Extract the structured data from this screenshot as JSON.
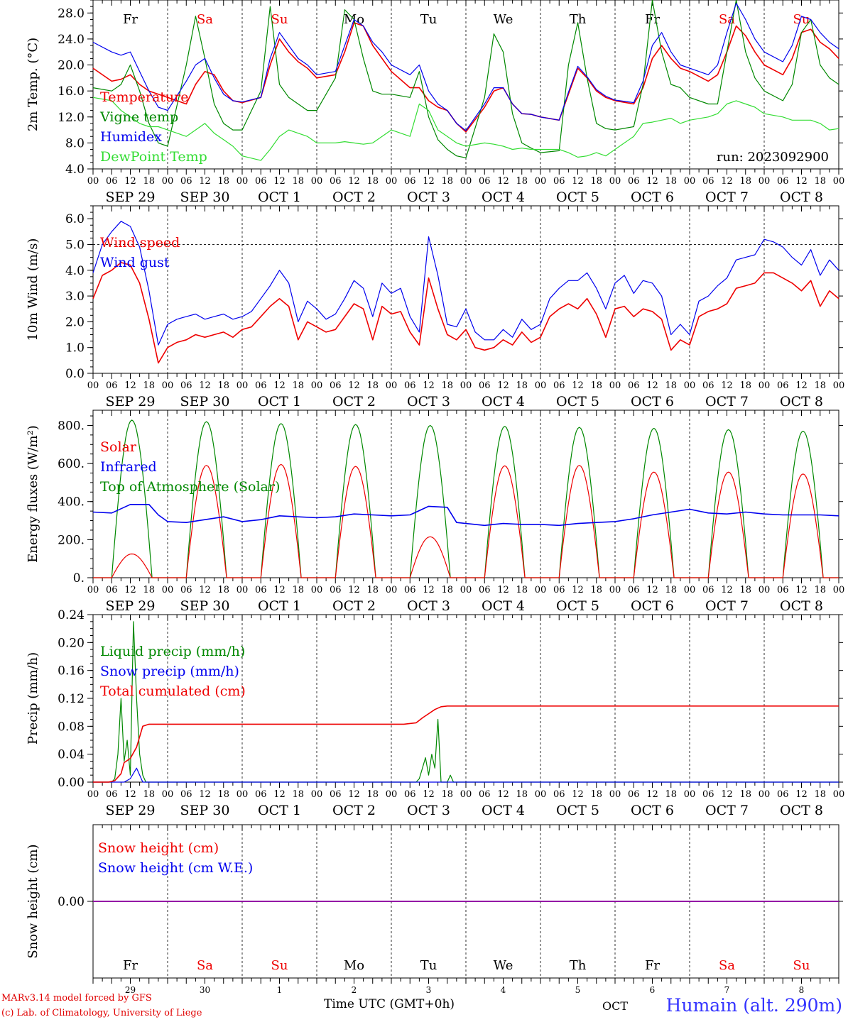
{
  "colors": {
    "red": "#ee0000",
    "green": "#008800",
    "blue": "#0000ee",
    "light_green": "#33dd33",
    "purple": "#8800aa"
  },
  "days": [
    {
      "abbr": "Fr",
      "date_label": "SEP 29",
      "num": "29",
      "weekend": false
    },
    {
      "abbr": "Sa",
      "date_label": "SEP 30",
      "num": "30",
      "weekend": true
    },
    {
      "abbr": "Su",
      "date_label": "OCT 1",
      "num": "1",
      "weekend": true
    },
    {
      "abbr": "Mo",
      "date_label": "OCT 2",
      "num": "2",
      "weekend": false
    },
    {
      "abbr": "Tu",
      "date_label": "OCT 3",
      "num": "3",
      "weekend": false
    },
    {
      "abbr": "We",
      "date_label": "OCT 4",
      "num": "4",
      "weekend": false
    },
    {
      "abbr": "Th",
      "date_label": "OCT 5",
      "num": "5",
      "weekend": false
    },
    {
      "abbr": "Fr",
      "date_label": "OCT 6",
      "num": "6",
      "weekend": false
    },
    {
      "abbr": "Sa",
      "date_label": "OCT 7",
      "num": "7",
      "weekend": true
    },
    {
      "abbr": "Su",
      "date_label": "OCT 8",
      "num": "8",
      "weekend": true
    }
  ],
  "hour_ticks": [
    "00",
    "06",
    "12",
    "18"
  ],
  "footer": {
    "credit1": "MARv3.14 model forced by GFS",
    "credit2": "(c) Lab. of Climatology, University of Liege",
    "time_label": "Time UTC (GMT+0h)",
    "month_label": "OCT",
    "location": "Humain (alt. 290m)"
  },
  "chart_data": [
    {
      "type": "line",
      "ylabel": "2m Temp. (°C)",
      "ylim": [
        4,
        30
      ],
      "yticks": [
        "4.0",
        "8.0",
        "12.0",
        "16.0",
        "20.0",
        "24.0",
        "28.0"
      ],
      "run_label": "run: 2023092900",
      "x_hours": [
        0,
        6,
        9,
        12,
        15,
        18,
        21,
        24,
        30,
        33,
        36,
        39,
        42,
        45,
        48,
        54,
        57,
        60,
        63,
        66,
        69,
        72,
        78,
        81,
        84,
        87,
        90,
        93,
        96,
        102,
        105,
        108,
        111,
        114,
        117,
        120,
        126,
        129,
        132,
        135,
        138,
        141,
        144,
        150,
        153,
        156,
        159,
        162,
        165,
        168,
        174,
        177,
        180,
        183,
        186,
        189,
        192,
        198,
        201,
        204,
        207,
        210,
        213,
        216,
        222,
        225,
        228,
        231,
        234,
        237,
        240
      ],
      "series": [
        {
          "name": "Temperature",
          "color": "red",
          "values": [
            19.5,
            17.5,
            17.8,
            18.5,
            17.0,
            16.0,
            15.5,
            15.0,
            14.0,
            17.0,
            19.0,
            18.5,
            16.0,
            14.5,
            14.2,
            15.0,
            20.0,
            24.0,
            22.0,
            20.5,
            19.5,
            18.0,
            18.5,
            22.0,
            26.5,
            26.0,
            23.0,
            21.0,
            19.0,
            16.5,
            16.5,
            14.5,
            13.5,
            13.0,
            11.0,
            9.7,
            13.5,
            16.0,
            16.5,
            14.0,
            12.5,
            12.4,
            12.0,
            11.5,
            15.5,
            19.5,
            18.0,
            16.0,
            15.0,
            14.5,
            14.0,
            16.5,
            21.0,
            23.0,
            21.0,
            19.5,
            19.0,
            17.5,
            18.5,
            22.0,
            26.0,
            24.5,
            22.0,
            20.0,
            18.5,
            21.0,
            25.0,
            25.5,
            23.5,
            22.5,
            21.0
          ]
        },
        {
          "name": "Vigne temp",
          "color": "green",
          "values": [
            16.5,
            16.0,
            17.0,
            20.0,
            16.0,
            11.0,
            8.0,
            7.5,
            20.0,
            27.5,
            21.0,
            14.0,
            11.0,
            10.0,
            10.0,
            16.0,
            29.0,
            17.0,
            15.0,
            14.0,
            13.0,
            13.0,
            18.0,
            28.5,
            27.0,
            21.0,
            16.0,
            15.5,
            15.5,
            15.0,
            19.0,
            12.0,
            8.5,
            7.0,
            6.0,
            5.7,
            15.0,
            24.8,
            22.0,
            12.5,
            8.0,
            7.2,
            6.5,
            6.8,
            20.0,
            26.5,
            18.0,
            11.0,
            10.2,
            10.0,
            10.5,
            17.0,
            30.0,
            22.0,
            17.0,
            16.5,
            15.0,
            14.0,
            14.0,
            22.0,
            30.0,
            22.0,
            18.0,
            16.0,
            14.5,
            17.0,
            25.0,
            27.0,
            20.0,
            18.0,
            17.0
          ]
        },
        {
          "name": "Humidex",
          "color": "blue",
          "values": [
            23.5,
            22.0,
            21.5,
            22.0,
            19.0,
            16.0,
            13.5,
            13.0,
            17.5,
            20.0,
            21.0,
            18.0,
            15.5,
            14.5,
            14.3,
            15.0,
            21.0,
            25.0,
            23.0,
            21.0,
            20.0,
            18.5,
            19.0,
            23.0,
            27.0,
            26.0,
            23.5,
            22.0,
            20.0,
            18.5,
            20.0,
            16.0,
            14.0,
            13.0,
            11.0,
            9.9,
            14.0,
            16.5,
            16.5,
            14.0,
            12.5,
            12.4,
            12.0,
            11.5,
            15.8,
            19.8,
            18.2,
            16.2,
            15.2,
            14.6,
            14.2,
            17.5,
            23.0,
            25.0,
            22.0,
            20.0,
            19.5,
            18.5,
            20.0,
            25.0,
            29.5,
            27.0,
            24.0,
            22.0,
            20.5,
            23.0,
            27.5,
            27.0,
            25.0,
            23.5,
            22.5
          ]
        },
        {
          "name": "DewPoint Temp",
          "color": "light_green",
          "values": [
            15.0,
            14.5,
            13.0,
            12.0,
            11.0,
            10.5,
            10.5,
            10.0,
            9.0,
            10.0,
            11.0,
            9.5,
            8.5,
            7.5,
            6.0,
            5.3,
            7.0,
            9.0,
            10.0,
            9.5,
            9.0,
            8.0,
            8.0,
            8.2,
            8.0,
            7.8,
            8.0,
            9.0,
            10.0,
            9.0,
            14.0,
            13.0,
            10.0,
            9.0,
            8.0,
            7.5,
            8.0,
            7.8,
            7.5,
            7.0,
            7.2,
            7.0,
            7.0,
            7.0,
            6.5,
            5.8,
            6.0,
            6.5,
            6.0,
            7.0,
            9.0,
            11.0,
            11.2,
            11.5,
            11.8,
            11.0,
            11.5,
            12.0,
            12.5,
            14.0,
            14.5,
            14.0,
            13.5,
            12.5,
            12.0,
            11.5,
            11.5,
            11.5,
            11.0,
            10.0,
            10.2
          ]
        }
      ]
    },
    {
      "type": "line",
      "ylabel": "10m Wind (m/s)",
      "ylim": [
        0,
        6.5
      ],
      "yticks": [
        "0.0",
        "1.0",
        "2.0",
        "3.0",
        "4.0",
        "5.0",
        "6.0"
      ],
      "ref_line": 5,
      "x_hours": [
        0,
        3,
        6,
        9,
        12,
        15,
        18,
        21,
        24,
        27,
        30,
        33,
        36,
        39,
        42,
        45,
        48,
        51,
        54,
        57,
        60,
        63,
        66,
        69,
        72,
        75,
        78,
        81,
        84,
        87,
        90,
        93,
        96,
        99,
        102,
        105,
        108,
        111,
        114,
        117,
        120,
        123,
        126,
        129,
        132,
        135,
        138,
        141,
        144,
        147,
        150,
        153,
        156,
        159,
        162,
        165,
        168,
        171,
        174,
        177,
        180,
        183,
        186,
        189,
        192,
        195,
        198,
        201,
        204,
        207,
        210,
        213,
        216,
        219,
        222,
        225,
        228,
        231,
        234,
        237,
        240
      ],
      "series": [
        {
          "name": "Wind speed",
          "color": "red",
          "values": [
            2.9,
            3.8,
            4.0,
            4.3,
            4.2,
            3.5,
            2.1,
            0.4,
            1.0,
            1.2,
            1.3,
            1.5,
            1.4,
            1.5,
            1.6,
            1.4,
            1.7,
            1.8,
            2.2,
            2.6,
            2.9,
            2.6,
            1.3,
            2.0,
            1.8,
            1.6,
            1.7,
            2.2,
            2.7,
            2.5,
            1.3,
            2.6,
            2.3,
            2.4,
            1.6,
            1.1,
            3.7,
            2.5,
            1.5,
            1.3,
            1.7,
            1.0,
            0.9,
            1.0,
            1.3,
            1.1,
            1.6,
            1.2,
            1.4,
            2.2,
            2.5,
            2.7,
            2.5,
            2.9,
            2.3,
            1.4,
            2.5,
            2.6,
            2.2,
            2.5,
            2.4,
            2.1,
            0.9,
            1.3,
            1.1,
            2.2,
            2.4,
            2.5,
            2.7,
            3.3,
            3.4,
            3.5,
            3.9,
            3.9,
            3.7,
            3.5,
            3.2,
            3.6,
            2.6,
            3.2,
            2.9
          ]
        },
        {
          "name": "Wind gust",
          "color": "blue",
          "values": [
            3.9,
            5.0,
            5.5,
            5.9,
            5.7,
            4.9,
            3.2,
            1.1,
            1.9,
            2.1,
            2.2,
            2.3,
            2.1,
            2.2,
            2.3,
            2.1,
            2.2,
            2.4,
            2.9,
            3.4,
            4.0,
            3.5,
            2.0,
            2.8,
            2.5,
            2.1,
            2.3,
            2.9,
            3.6,
            3.3,
            2.2,
            3.5,
            3.1,
            3.3,
            2.2,
            1.6,
            5.3,
            3.8,
            1.9,
            1.8,
            2.5,
            1.6,
            1.3,
            1.3,
            1.7,
            1.4,
            2.1,
            1.7,
            1.9,
            2.9,
            3.3,
            3.6,
            3.6,
            3.9,
            3.3,
            2.5,
            3.5,
            3.8,
            3.1,
            3.6,
            3.5,
            3.0,
            1.5,
            1.9,
            1.5,
            2.8,
            3.0,
            3.4,
            3.7,
            4.4,
            4.5,
            4.6,
            5.2,
            5.1,
            4.9,
            4.5,
            4.2,
            4.8,
            3.8,
            4.4,
            4.0
          ]
        }
      ]
    },
    {
      "type": "line",
      "ylabel": "Energy fluxes (W/m²)",
      "ylim": [
        0,
        880
      ],
      "yticks": [
        "0.",
        "200.",
        "400.",
        "600.",
        "800."
      ],
      "daylight": {
        "sunrise_hour": 6,
        "sunset_hour": 19
      },
      "toa_peak": [
        828,
        820,
        810,
        805,
        800,
        795,
        790,
        785,
        778,
        770
      ],
      "solar_peak": [
        125,
        590,
        595,
        585,
        215,
        588,
        590,
        555,
        555,
        545
      ],
      "series": [
        {
          "name": "Solar",
          "color": "red"
        },
        {
          "name": "Infrared",
          "color": "blue",
          "x_hours": [
            0,
            6,
            12,
            18,
            21,
            24,
            30,
            36,
            42,
            48,
            54,
            60,
            66,
            72,
            78,
            84,
            90,
            96,
            102,
            108,
            114,
            117,
            120,
            126,
            132,
            138,
            144,
            150,
            156,
            162,
            168,
            174,
            180,
            186,
            192,
            198,
            204,
            210,
            216,
            222,
            228,
            234,
            240
          ],
          "values": [
            345,
            340,
            385,
            385,
            330,
            295,
            290,
            305,
            320,
            295,
            305,
            325,
            320,
            315,
            320,
            335,
            330,
            325,
            330,
            375,
            370,
            290,
            285,
            275,
            285,
            280,
            280,
            275,
            285,
            290,
            295,
            310,
            330,
            345,
            360,
            340,
            335,
            345,
            335,
            330,
            330,
            330,
            325
          ]
        },
        {
          "name": "Top of Atmosphere (Solar)",
          "color": "green"
        }
      ]
    },
    {
      "type": "line",
      "ylabel": "Precip (mm/h)",
      "ylim": [
        0,
        0.24
      ],
      "yticks": [
        "0.00",
        "0.04",
        "0.08",
        "0.12",
        "0.16",
        "0.20",
        "0.24"
      ],
      "series": [
        {
          "name": "Liquid precip (mm/h)",
          "color": "green",
          "x_hours": [
            0,
            6,
            7,
            8,
            9,
            10,
            11,
            12,
            13,
            14,
            15,
            16,
            17,
            18,
            102,
            104,
            105,
            106,
            107,
            108,
            109,
            110,
            111,
            112,
            113,
            114,
            115,
            116,
            117,
            118,
            240
          ],
          "values": [
            0,
            0,
            0.005,
            0.04,
            0.12,
            0.03,
            0.06,
            0.01,
            0.23,
            0.12,
            0.04,
            0.01,
            0.0,
            0.0,
            0.0,
            0.0,
            0.005,
            0.02,
            0.035,
            0.01,
            0.04,
            0.02,
            0.09,
            0.0,
            0.0,
            0.0,
            0.01,
            0.0,
            0.0,
            0.0,
            0.0
          ]
        },
        {
          "name": "Snow precip (mm/h)",
          "color": "blue",
          "x_hours": [
            0,
            10,
            12,
            14,
            16,
            240
          ],
          "values": [
            0,
            0,
            0.005,
            0.02,
            0,
            0
          ]
        },
        {
          "name": "Total cumulated (cm)",
          "color": "red",
          "x_hours": [
            0,
            5,
            7,
            9,
            10,
            12,
            14,
            16,
            18,
            24,
            100,
            104,
            106,
            108,
            110,
            112,
            114,
            240
          ],
          "values": [
            0,
            0,
            0.002,
            0.012,
            0.028,
            0.034,
            0.05,
            0.08,
            0.083,
            0.083,
            0.083,
            0.085,
            0.092,
            0.098,
            0.104,
            0.108,
            0.109,
            0.109
          ]
        }
      ]
    },
    {
      "type": "line",
      "ylabel": "Snow height (cm)",
      "ylim": [
        -1,
        1
      ],
      "yticks": [
        "0.00"
      ],
      "series": [
        {
          "name": "Snow height (cm)",
          "color": "red",
          "x_hours": [
            0,
            240
          ],
          "values": [
            0,
            0
          ]
        },
        {
          "name": "Snow height (cm W.E.)",
          "color": "blue",
          "x_hours": [
            0,
            240
          ],
          "values": [
            0,
            0
          ]
        }
      ]
    }
  ]
}
